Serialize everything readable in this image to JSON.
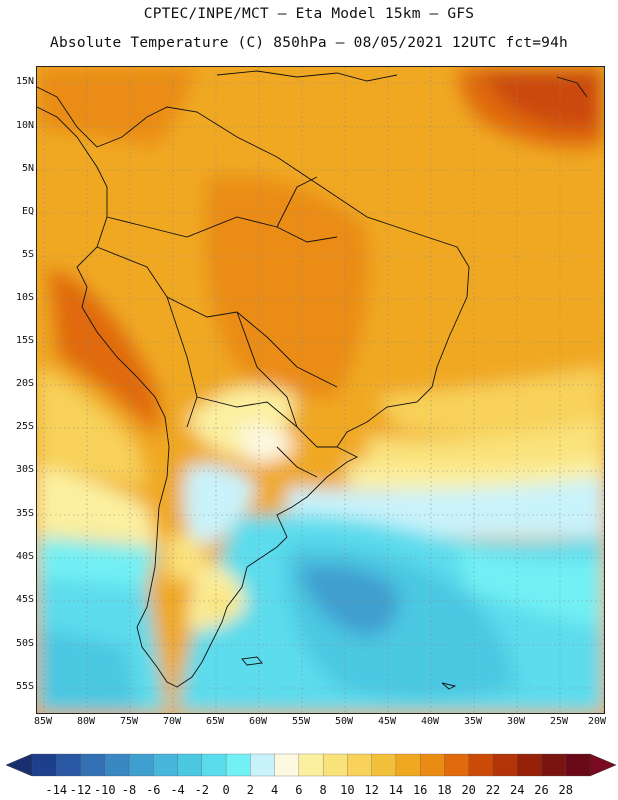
{
  "title_line1": "CPTEC/INPE/MCT –  Eta Model 15km – GFS",
  "title_line2": "Absolute Temperature (C) 850hPa – 08/05/2021 12UTC fct=94h",
  "lat_labels": [
    "15N",
    "10N",
    "5N",
    "EQ",
    "5S",
    "10S",
    "15S",
    "20S",
    "25S",
    "30S",
    "35S",
    "40S",
    "45S",
    "50S",
    "55S"
  ],
  "lon_labels": [
    "85W",
    "80W",
    "75W",
    "70W",
    "65W",
    "60W",
    "55W",
    "50W",
    "45W",
    "40W",
    "35W",
    "30W",
    "25W",
    "20W"
  ],
  "colorbar": {
    "ticks": [
      "-14",
      "-12",
      "-10",
      "-8",
      "-6",
      "-4",
      "-2",
      "0",
      "2",
      "4",
      "6",
      "8",
      "10",
      "12",
      "14",
      "16",
      "18",
      "20",
      "22",
      "24",
      "26",
      "28"
    ],
    "colors": [
      "#1e3f8c",
      "#2a57a3",
      "#3370b4",
      "#3a88c2",
      "#3f9fcf",
      "#48b5da",
      "#4cc8e2",
      "#5bdcec",
      "#72f0f4",
      "#c9f3fb",
      "#fdf8e0",
      "#fbf0a0",
      "#fae27a",
      "#f8d25a",
      "#f3c03c",
      "#f0a820",
      "#ea8c14",
      "#e06a0c",
      "#cc4a08",
      "#b23408",
      "#962008",
      "#7a1410",
      "#6a0a18"
    ],
    "underflow_color": "#1a2f70",
    "overflow_color": "#7a0a20"
  }
}
